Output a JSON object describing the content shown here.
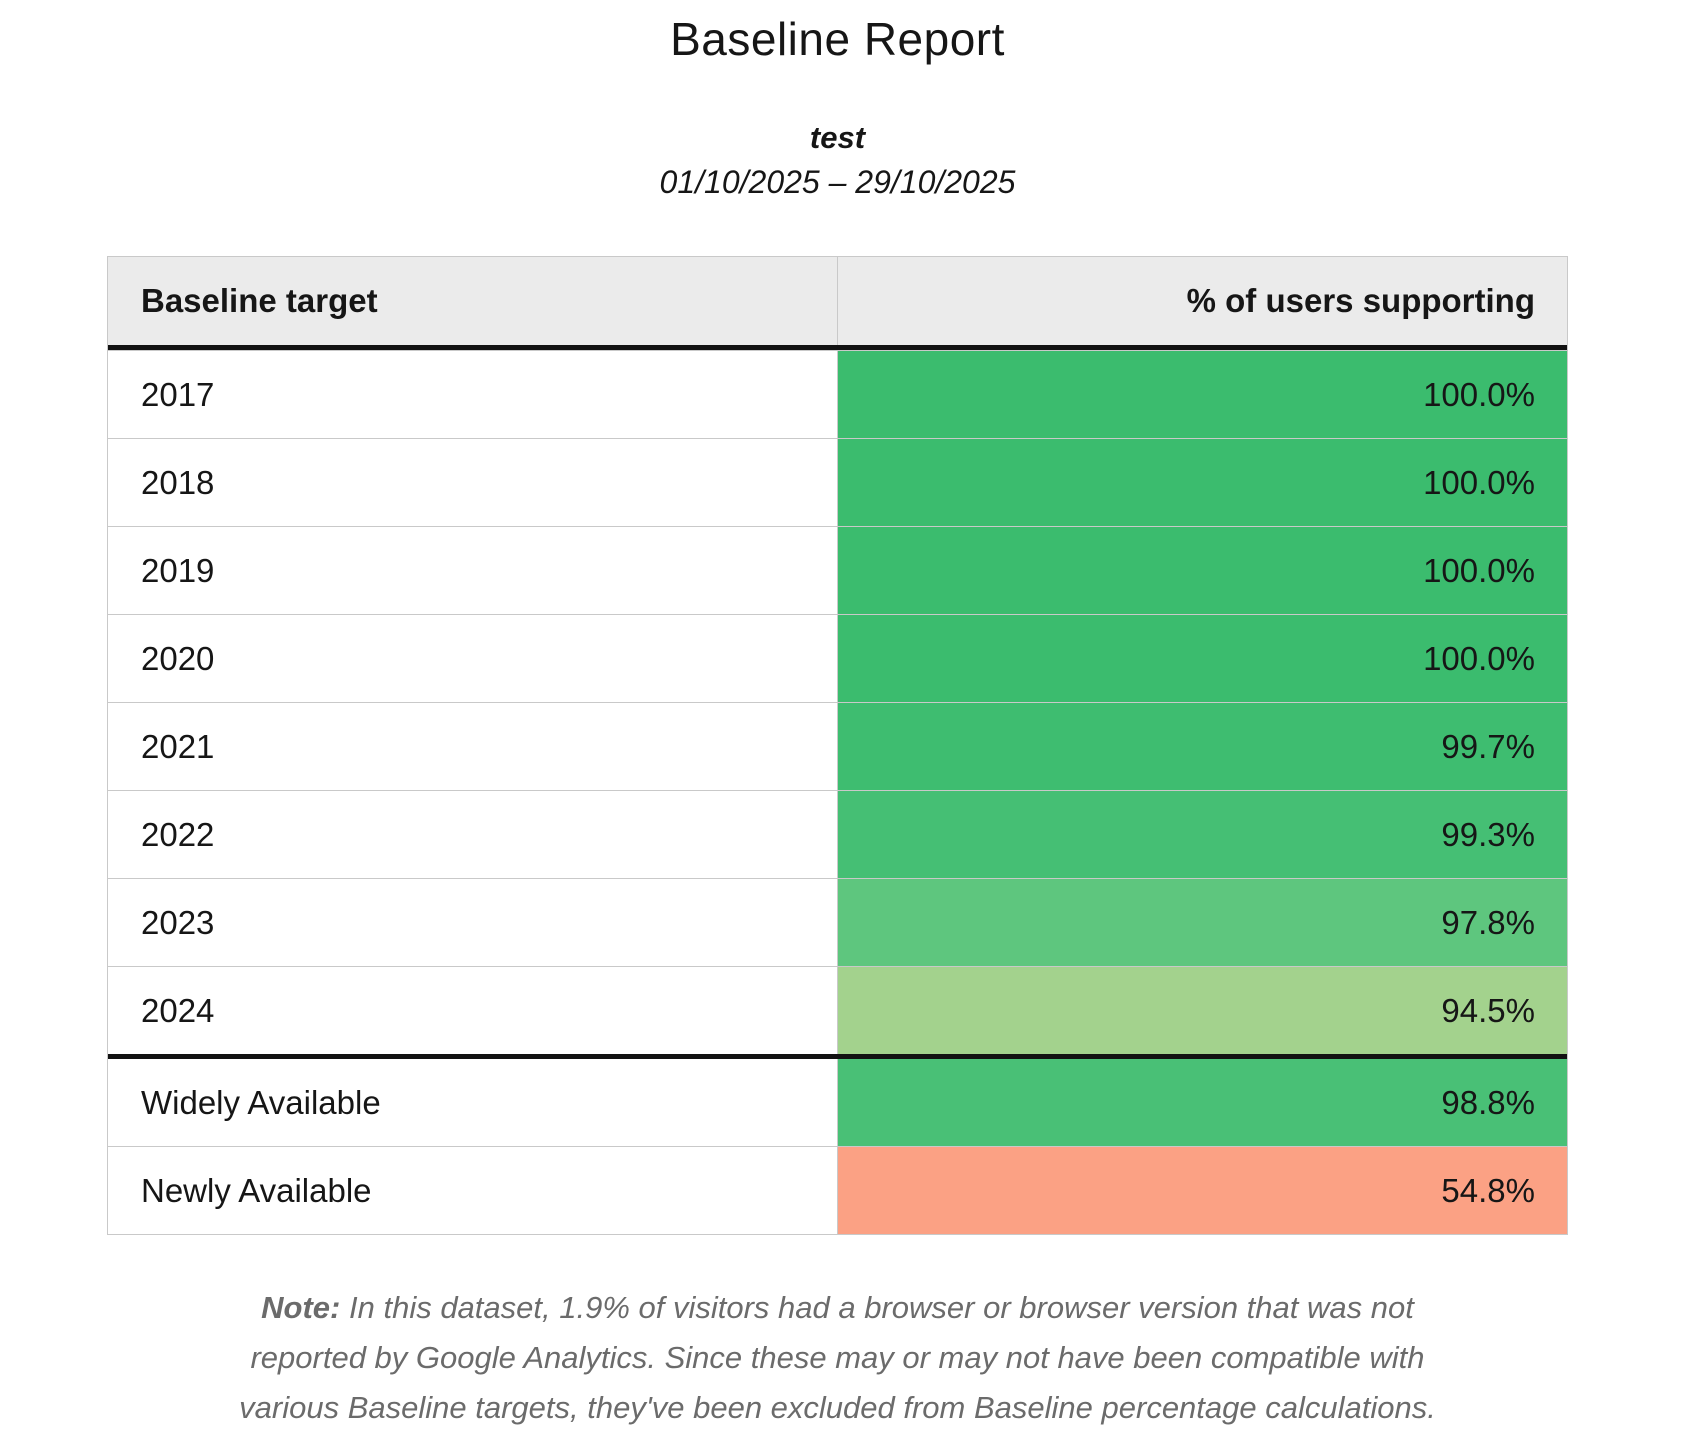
{
  "report": {
    "title": "Baseline Report",
    "subtitle": "test",
    "date_range": "01/10/2025 – 29/10/2025"
  },
  "table": {
    "headers": {
      "target": "Baseline target",
      "percent": "% of users supporting"
    },
    "rows": [
      {
        "label": "2017",
        "value": "100.0%",
        "color": "#3bbc6e"
      },
      {
        "label": "2018",
        "value": "100.0%",
        "color": "#3bbc6e"
      },
      {
        "label": "2019",
        "value": "100.0%",
        "color": "#3bbc6e"
      },
      {
        "label": "2020",
        "value": "100.0%",
        "color": "#3bbc6e"
      },
      {
        "label": "2021",
        "value": "99.7%",
        "color": "#3ebd70"
      },
      {
        "label": "2022",
        "value": "99.3%",
        "color": "#45bf74"
      },
      {
        "label": "2023",
        "value": "97.8%",
        "color": "#5ec67e"
      },
      {
        "label": "2024",
        "value": "94.5%",
        "color": "#a3d28d"
      },
      {
        "label": "Widely Available",
        "value": "98.8%",
        "color": "#49c076"
      },
      {
        "label": "Newly Available",
        "value": "54.8%",
        "color": "#fba184"
      }
    ]
  },
  "note": {
    "prefix": "Note:",
    "lines": [
      "In this dataset, 1.9% of visitors had a browser or browser version that was not",
      "reported by Google Analytics. Since these may or may not have been compatible with",
      "various Baseline targets, they've been excluded from Baseline percentage calculations."
    ]
  },
  "colors": {
    "header_background": "#ebebeb",
    "grid_border": "#c9c9c9",
    "strong_border": "#121212",
    "note_text": "#6b6b6b",
    "green_full": "#3bbc6e",
    "green_light": "#a3d28d",
    "salmon_low": "#fba184"
  },
  "chart_data": {
    "type": "table",
    "title": "Baseline Report",
    "subtitle": "test",
    "date_range": "01/10/2025 – 29/10/2025",
    "columns": [
      "Baseline target",
      "% of users supporting"
    ],
    "rows": [
      {
        "target": "2017",
        "percent": 100.0
      },
      {
        "target": "2018",
        "percent": 100.0
      },
      {
        "target": "2019",
        "percent": 100.0
      },
      {
        "target": "2020",
        "percent": 100.0
      },
      {
        "target": "2021",
        "percent": 99.7
      },
      {
        "target": "2022",
        "percent": 99.3
      },
      {
        "target": "2023",
        "percent": 97.8
      },
      {
        "target": "2024",
        "percent": 94.5
      },
      {
        "target": "Widely Available",
        "percent": 98.8
      },
      {
        "target": "Newly Available",
        "percent": 54.8
      }
    ],
    "layout_hints": {
      "value_column_color_encoded": true,
      "color_scale": "red-to-green by percent",
      "thick_rule_after_row_index": 7,
      "note": "In this dataset, 1.9% of visitors had a browser or browser version that was not reported by Google Analytics. Since these may or may not have been compatible with various Baseline targets, they've been excluded from Baseline percentage calculations."
    }
  }
}
